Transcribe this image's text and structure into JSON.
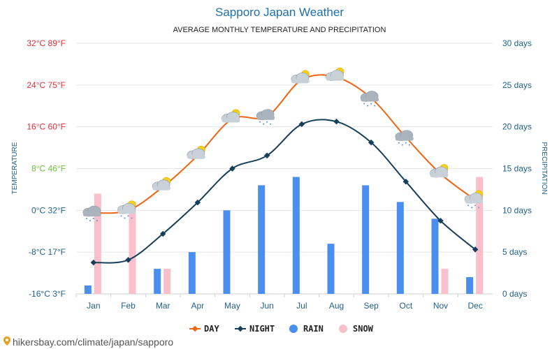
{
  "chart_data": {
    "type": "line+bar",
    "title": "Sapporo Japan Weather",
    "subtitle": "AVERAGE MONTHLY TEMPERATURE AND PRECIPITATION",
    "ylabel_left": "TEMPERATURE",
    "ylabel_right": "PRECIPITATION",
    "categories": [
      "Jan",
      "Feb",
      "Mar",
      "Apr",
      "May",
      "Jun",
      "Jul",
      "Aug",
      "Sep",
      "Oct",
      "Nov",
      "Dec"
    ],
    "left_axis": {
      "range": [
        -16,
        32
      ],
      "ticks": [
        {
          "value": -16,
          "label": "-16°C 3°F",
          "color": "#1f5f8b"
        },
        {
          "value": -8,
          "label": "-8°C 17°F",
          "color": "#1f5f8b"
        },
        {
          "value": 0,
          "label": "0°C 32°F",
          "color": "#1f5f8b"
        },
        {
          "value": 8,
          "label": "8°C 46°F",
          "color": "#6cbf3a"
        },
        {
          "value": 16,
          "label": "16°C 60°F",
          "color": "#e0303a"
        },
        {
          "value": 24,
          "label": "24°C 75°F",
          "color": "#e0303a"
        },
        {
          "value": 32,
          "label": "32°C 89°F",
          "color": "#e0303a"
        }
      ]
    },
    "right_axis": {
      "range": [
        0,
        30
      ],
      "ticks": [
        {
          "value": 0,
          "label": "0 days"
        },
        {
          "value": 5,
          "label": "5 days"
        },
        {
          "value": 10,
          "label": "10 days"
        },
        {
          "value": 15,
          "label": "15 days"
        },
        {
          "value": 20,
          "label": "20 days"
        },
        {
          "value": 25,
          "label": "25 days"
        },
        {
          "value": 30,
          "label": "30 days"
        }
      ]
    },
    "series": [
      {
        "name": "DAY",
        "kind": "line",
        "axis": "left",
        "color": "#f06414",
        "values": [
          -0.5,
          0,
          4.5,
          10.5,
          17.5,
          18,
          25,
          25.5,
          21.5,
          14,
          7,
          2
        ]
      },
      {
        "name": "NIGHT",
        "kind": "line",
        "axis": "left",
        "color": "#173f5a",
        "values": [
          -10,
          -9.5,
          -4.5,
          1.5,
          8,
          10.5,
          16.5,
          17,
          13,
          5.5,
          -2,
          -7.5
        ]
      },
      {
        "name": "RAIN",
        "kind": "bar",
        "axis": "right",
        "color": "#4a8ef0",
        "values": [
          1,
          0,
          3,
          5,
          10,
          13,
          14,
          6,
          13,
          11,
          9,
          2
        ]
      },
      {
        "name": "SNOW",
        "kind": "bar",
        "axis": "right",
        "color": "#f9c0cb",
        "values": [
          12,
          11,
          3,
          0,
          0,
          0,
          0,
          0,
          0,
          0,
          3,
          14
        ]
      }
    ],
    "weather_icons": [
      "cloudy-snow",
      "partly-cloudy-snow",
      "partly-cloudy",
      "partly-cloudy",
      "partly-cloudy",
      "cloudy-rain",
      "partly-cloudy",
      "partly-cloudy",
      "cloudy-rain",
      "cloudy-rain",
      "partly-cloudy",
      "partly-cloudy-snow"
    ],
    "legend": [
      {
        "label": "DAY",
        "color": "#f06414",
        "icon": "line-diamond-icon"
      },
      {
        "label": "NIGHT",
        "color": "#173f5a",
        "icon": "line-diamond-icon"
      },
      {
        "label": "RAIN",
        "color": "#4a8ef0",
        "icon": "circle-icon"
      },
      {
        "label": "SNOW",
        "color": "#f9c0cb",
        "icon": "circle-icon"
      }
    ]
  },
  "source": {
    "text": "hikersbay.com/climate/japan/sapporo",
    "icon": "location-pin-icon"
  }
}
